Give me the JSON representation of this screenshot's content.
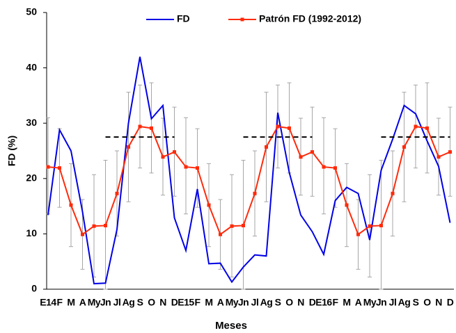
{
  "chart_data": {
    "type": "line",
    "xlabel": "Meses",
    "ylabel": "FD (%)",
    "categories": [
      "E14",
      "F",
      "M",
      "A",
      "My",
      "Jn",
      "Jl",
      "Ag",
      "S",
      "O",
      "N",
      "D",
      "E15",
      "F",
      "M",
      "A",
      "My",
      "Jn",
      "Jl",
      "Ag",
      "S",
      "O",
      "N",
      "D",
      "E16",
      "F",
      "M",
      "A",
      "My",
      "Jn",
      "Jl",
      "Ag",
      "S",
      "O",
      "N",
      "D"
    ],
    "ylim": [
      0,
      50
    ],
    "yticks": [
      0,
      10,
      20,
      30,
      40,
      50
    ],
    "legend": "top",
    "series": [
      {
        "name": "FD",
        "color": "#0000e6",
        "values": [
          13.4,
          28.8,
          25,
          14,
          1,
          1.1,
          10.8,
          30,
          42,
          30.8,
          33.2,
          12.9,
          7,
          18.1,
          4.6,
          4.7,
          1.3,
          4,
          6.2,
          6,
          31.9,
          21.1,
          13.4,
          10.4,
          6.3,
          16,
          18.4,
          17.3,
          8.9,
          21.5,
          27.1,
          33.2,
          31.7,
          26.8,
          22.2,
          12
        ]
      },
      {
        "name": "Patrón FD (1992-2012)",
        "color": "#ff2a0a",
        "values": [
          22.1,
          21.9,
          15.2,
          9.9,
          11.4,
          11.5,
          17.3,
          25.7,
          29.4,
          29.1,
          23.9,
          24.8,
          22.1,
          21.9,
          15.2,
          9.9,
          11.4,
          11.5,
          17.3,
          25.7,
          29.4,
          29.1,
          23.9,
          24.8,
          22.1,
          21.9,
          15.2,
          9.9,
          11.4,
          11.5,
          17.3,
          25.7,
          29.4,
          29.1,
          23.9,
          24.8
        ],
        "error_low": [
          13.6,
          14.8,
          7.7,
          3.6,
          2.2,
          0,
          9.6,
          15.8,
          21.9,
          21,
          17,
          16.8,
          13.6,
          14.8,
          7.7,
          3.6,
          2.2,
          0,
          9.6,
          15.8,
          21.9,
          21,
          17,
          16.8,
          13.6,
          14.8,
          7.7,
          3.6,
          2.2,
          0,
          9.6,
          15.8,
          21.9,
          21,
          17,
          16.8
        ],
        "error_high": [
          31,
          29,
          22.7,
          16.2,
          20.7,
          23.3,
          25,
          35.6,
          36.9,
          37.3,
          30.9,
          32.9,
          31,
          29,
          22.7,
          16.2,
          20.7,
          23.3,
          25,
          35.6,
          36.9,
          37.3,
          30.9,
          32.9,
          31,
          29,
          22.7,
          16.2,
          20.7,
          23.3,
          25,
          35.6,
          36.9,
          37.3,
          30.9,
          32.9
        ],
        "error_color": "#a6a6a6"
      },
      {
        "color": "#000000",
        "style": "dashed",
        "values": [
          null,
          null,
          null,
          null,
          null,
          27.5,
          27.5,
          27.5,
          27.5,
          27.5,
          27.5,
          27.5,
          null,
          null,
          null,
          null,
          null,
          27.5,
          27.5,
          27.5,
          27.5,
          27.5,
          27.5,
          27.5,
          null,
          null,
          null,
          null,
          null,
          27.5,
          27.5,
          27.5,
          27.5,
          27.5,
          27.5,
          27.5
        ]
      }
    ]
  }
}
